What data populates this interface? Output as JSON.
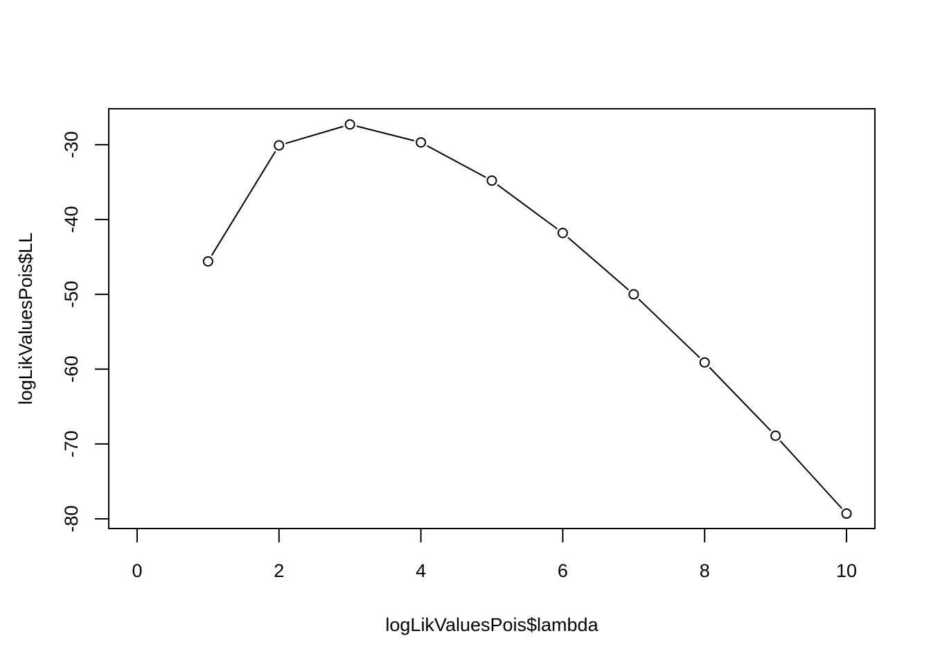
{
  "chart_data": {
    "type": "line",
    "markers": "open-circle",
    "xlabel": "logLikValuesPois$lambda",
    "ylabel": "logLikValuesPois$LL",
    "xlim": [
      -0.4,
      10.4
    ],
    "ylim": [
      -81.3,
      -25.2
    ],
    "xticks": [
      0,
      2,
      4,
      6,
      8,
      10
    ],
    "xtick_labels": [
      "0",
      "2",
      "4",
      "6",
      "8",
      "10"
    ],
    "yticks": [
      -80,
      -70,
      -60,
      -50,
      -40,
      -30
    ],
    "ytick_labels": [
      "-80",
      "-70",
      "-60",
      "-50",
      "-40",
      "-30"
    ],
    "grid": false,
    "series": [
      {
        "x": [
          1,
          2,
          3,
          4,
          5,
          6,
          7,
          8,
          9,
          10
        ],
        "y": [
          -45.6,
          -30.1,
          -27.3,
          -29.7,
          -34.8,
          -41.8,
          -50.0,
          -59.1,
          -68.9,
          -79.3
        ]
      }
    ],
    "colors": {
      "line": "#000000",
      "marker": "#000000",
      "background": "#ffffff"
    }
  }
}
